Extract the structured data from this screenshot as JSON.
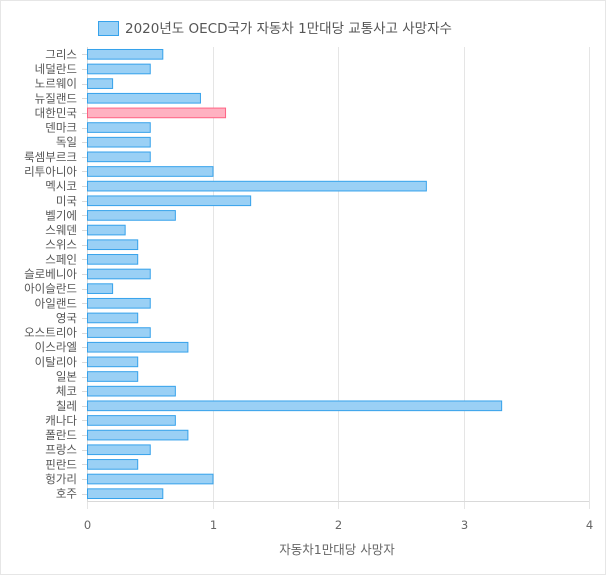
{
  "chart_data": {
    "type": "bar",
    "orientation": "horizontal",
    "legend_label": "2020년도 OECD국가 자동차 1만대당 교통사고 사망자수",
    "legend_position": "top-center",
    "xlabel": "자동차1만대당 사망자",
    "ylabel": "",
    "xlim": [
      0,
      4
    ],
    "x_ticks": [
      0,
      1,
      2,
      3,
      4
    ],
    "grid": true,
    "colors": {
      "bar_fill": "#9ad0f5",
      "bar_border": "#36a2eb",
      "highlight_fill": "#ffb1c1",
      "highlight_border": "#ff6384",
      "grid": "#e5e5e5"
    },
    "highlight_category": "대한민국",
    "categories": [
      "그리스",
      "네덜란드",
      "노르웨이",
      "뉴질랜드",
      "대한민국",
      "덴마크",
      "독일",
      "룩셈부르크",
      "리투아니아",
      "멕시코",
      "미국",
      "벨기에",
      "스웨덴",
      "스위스",
      "스페인",
      "슬로베니아",
      "아이슬란드",
      "아일랜드",
      "영국",
      "오스트리아",
      "이스라엘",
      "이탈리아",
      "일본",
      "체코",
      "칠레",
      "캐나다",
      "폴란드",
      "프랑스",
      "핀란드",
      "헝가리",
      "호주"
    ],
    "values": [
      0.6,
      0.5,
      0.2,
      0.9,
      1.1,
      0.5,
      0.5,
      0.5,
      1.0,
      2.7,
      1.3,
      0.7,
      0.3,
      0.4,
      0.4,
      0.5,
      0.2,
      0.5,
      0.4,
      0.5,
      0.8,
      0.4,
      0.4,
      0.7,
      3.3,
      0.7,
      0.8,
      0.5,
      0.4,
      1.0,
      0.6
    ]
  }
}
